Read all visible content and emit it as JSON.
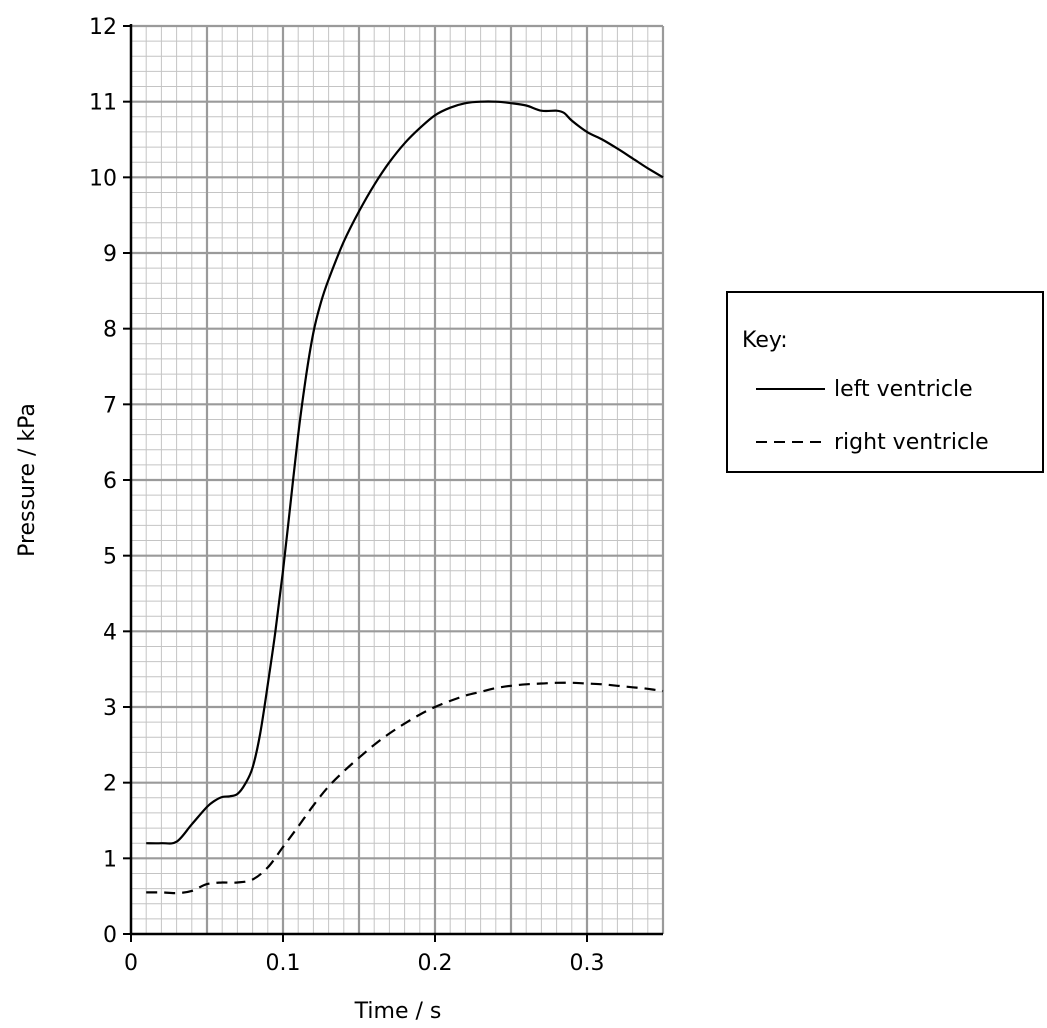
{
  "chart_data": {
    "type": "line",
    "title": "",
    "xlabel": "Time / s",
    "ylabel": "Pressure / kPa",
    "xlim": [
      0,
      0.35
    ],
    "ylim": [
      0,
      12
    ],
    "x_ticks": [
      "0",
      "0.1",
      "0.2",
      "0.3"
    ],
    "x_tick_values": [
      0,
      0.1,
      0.2,
      0.3
    ],
    "y_ticks": [
      "0",
      "1",
      "2",
      "3",
      "4",
      "5",
      "6",
      "7",
      "8",
      "9",
      "10",
      "11",
      "12"
    ],
    "y_tick_values": [
      0,
      1,
      2,
      3,
      4,
      5,
      6,
      7,
      8,
      9,
      10,
      11,
      12
    ],
    "grid": "on",
    "legend": {
      "title": "Key:",
      "placement": "right"
    },
    "series": [
      {
        "name": "left ventricle",
        "style": "solid",
        "x": [
          0.01,
          0.02,
          0.03,
          0.04,
          0.05,
          0.055,
          0.06,
          0.065,
          0.07,
          0.075,
          0.08,
          0.085,
          0.09,
          0.095,
          0.1,
          0.105,
          0.11,
          0.115,
          0.12,
          0.125,
          0.13,
          0.14,
          0.15,
          0.16,
          0.17,
          0.18,
          0.19,
          0.2,
          0.21,
          0.22,
          0.23,
          0.24,
          0.25,
          0.26,
          0.27,
          0.28,
          0.285,
          0.29,
          0.3,
          0.31,
          0.32,
          0.33,
          0.34,
          0.35
        ],
        "y": [
          1.2,
          1.2,
          1.22,
          1.45,
          1.68,
          1.76,
          1.81,
          1.82,
          1.85,
          1.98,
          2.2,
          2.65,
          3.3,
          4.0,
          4.8,
          5.7,
          6.6,
          7.35,
          7.95,
          8.35,
          8.65,
          9.15,
          9.55,
          9.9,
          10.2,
          10.45,
          10.65,
          10.82,
          10.92,
          10.98,
          11.0,
          11.0,
          10.98,
          10.95,
          10.88,
          10.88,
          10.85,
          10.75,
          10.6,
          10.5,
          10.38,
          10.25,
          10.12,
          10.0
        ]
      },
      {
        "name": "right ventricle",
        "style": "dashed",
        "x": [
          0.01,
          0.02,
          0.03,
          0.04,
          0.05,
          0.06,
          0.07,
          0.08,
          0.09,
          0.1,
          0.11,
          0.12,
          0.13,
          0.14,
          0.15,
          0.16,
          0.17,
          0.18,
          0.19,
          0.2,
          0.21,
          0.22,
          0.23,
          0.24,
          0.25,
          0.26,
          0.27,
          0.28,
          0.29,
          0.3,
          0.31,
          0.32,
          0.33,
          0.34,
          0.35
        ],
        "y": [
          0.55,
          0.55,
          0.54,
          0.57,
          0.66,
          0.68,
          0.68,
          0.72,
          0.88,
          1.15,
          1.42,
          1.7,
          1.95,
          2.15,
          2.33,
          2.5,
          2.65,
          2.78,
          2.9,
          3.0,
          3.08,
          3.15,
          3.2,
          3.25,
          3.28,
          3.3,
          3.31,
          3.32,
          3.32,
          3.31,
          3.3,
          3.28,
          3.26,
          3.24,
          3.21
        ]
      }
    ]
  }
}
